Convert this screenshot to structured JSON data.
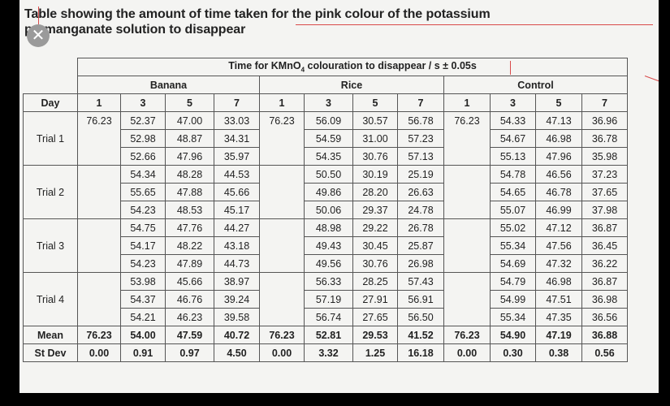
{
  "title_line1": "Table showing the amount of time taken for the pink colour of the potassium",
  "title_line2": "permanganate solution to disappear",
  "close_icon_glyph": "✕",
  "header": {
    "main": "Time for KMnO",
    "main_sub": "4",
    "main_rest": " colouration to disappear / s ± 0.05s",
    "day_label": "Day",
    "groups": [
      "Banana",
      "Rice",
      "Control"
    ],
    "days": [
      "1",
      "3",
      "5",
      "7"
    ]
  },
  "trials": [
    {
      "label": "Trial 1",
      "rows": [
        [
          "76.23",
          "52.37",
          "47.00",
          "33.03",
          "76.23",
          "56.09",
          "30.57",
          "56.78",
          "76.23",
          "54.33",
          "47.13",
          "36.96"
        ],
        [
          "",
          "52.98",
          "48.87",
          "34.31",
          "",
          "54.59",
          "31.00",
          "57.23",
          "",
          "54.67",
          "46.98",
          "36.78"
        ],
        [
          "",
          "52.66",
          "47.96",
          "35.97",
          "",
          "54.35",
          "30.76",
          "57.13",
          "",
          "55.13",
          "47.96",
          "35.98"
        ]
      ]
    },
    {
      "label": "Trial 2",
      "rows": [
        [
          "",
          "54.34",
          "48.28",
          "44.53",
          "",
          "50.50",
          "30.19",
          "25.19",
          "",
          "54.78",
          "46.56",
          "37.23"
        ],
        [
          "",
          "55.65",
          "47.88",
          "45.66",
          "",
          "49.86",
          "28.20",
          "26.63",
          "",
          "54.65",
          "46.78",
          "37.65"
        ],
        [
          "",
          "54.23",
          "48.53",
          "45.17",
          "",
          "50.06",
          "29.37",
          "24.78",
          "",
          "55.07",
          "46.99",
          "37.98"
        ]
      ]
    },
    {
      "label": "Trial 3",
      "rows": [
        [
          "",
          "54.75",
          "47.76",
          "44.27",
          "",
          "48.98",
          "29.22",
          "26.78",
          "",
          "55.02",
          "47.12",
          "36.87"
        ],
        [
          "",
          "54.17",
          "48.22",
          "43.18",
          "",
          "49.43",
          "30.45",
          "25.87",
          "",
          "55.34",
          "47.56",
          "36.45"
        ],
        [
          "",
          "54.23",
          "47.89",
          "44.73",
          "",
          "49.56",
          "30.76",
          "26.98",
          "",
          "54.69",
          "47.32",
          "36.22"
        ]
      ]
    },
    {
      "label": "Trial 4",
      "rows": [
        [
          "",
          "53.98",
          "45.66",
          "38.97",
          "",
          "56.33",
          "28.25",
          "57.43",
          "",
          "54.79",
          "46.98",
          "36.87"
        ],
        [
          "",
          "54.37",
          "46.76",
          "39.24",
          "",
          "57.19",
          "27.91",
          "56.91",
          "",
          "54.99",
          "47.51",
          "36.98"
        ],
        [
          "",
          "54.21",
          "46.23",
          "39.58",
          "",
          "56.74",
          "27.65",
          "56.50",
          "",
          "55.34",
          "47.35",
          "36.56"
        ]
      ]
    }
  ],
  "summary": [
    {
      "label": "Mean",
      "values": [
        "76.23",
        "54.00",
        "47.59",
        "40.72",
        "76.23",
        "52.81",
        "29.53",
        "41.52",
        "76.23",
        "54.90",
        "47.19",
        "36.88"
      ]
    },
    {
      "label": "St Dev",
      "values": [
        "0.00",
        "0.91",
        "0.97",
        "4.50",
        "0.00",
        "3.32",
        "1.25",
        "16.18",
        "0.00",
        "0.30",
        "0.38",
        "0.56"
      ]
    }
  ]
}
